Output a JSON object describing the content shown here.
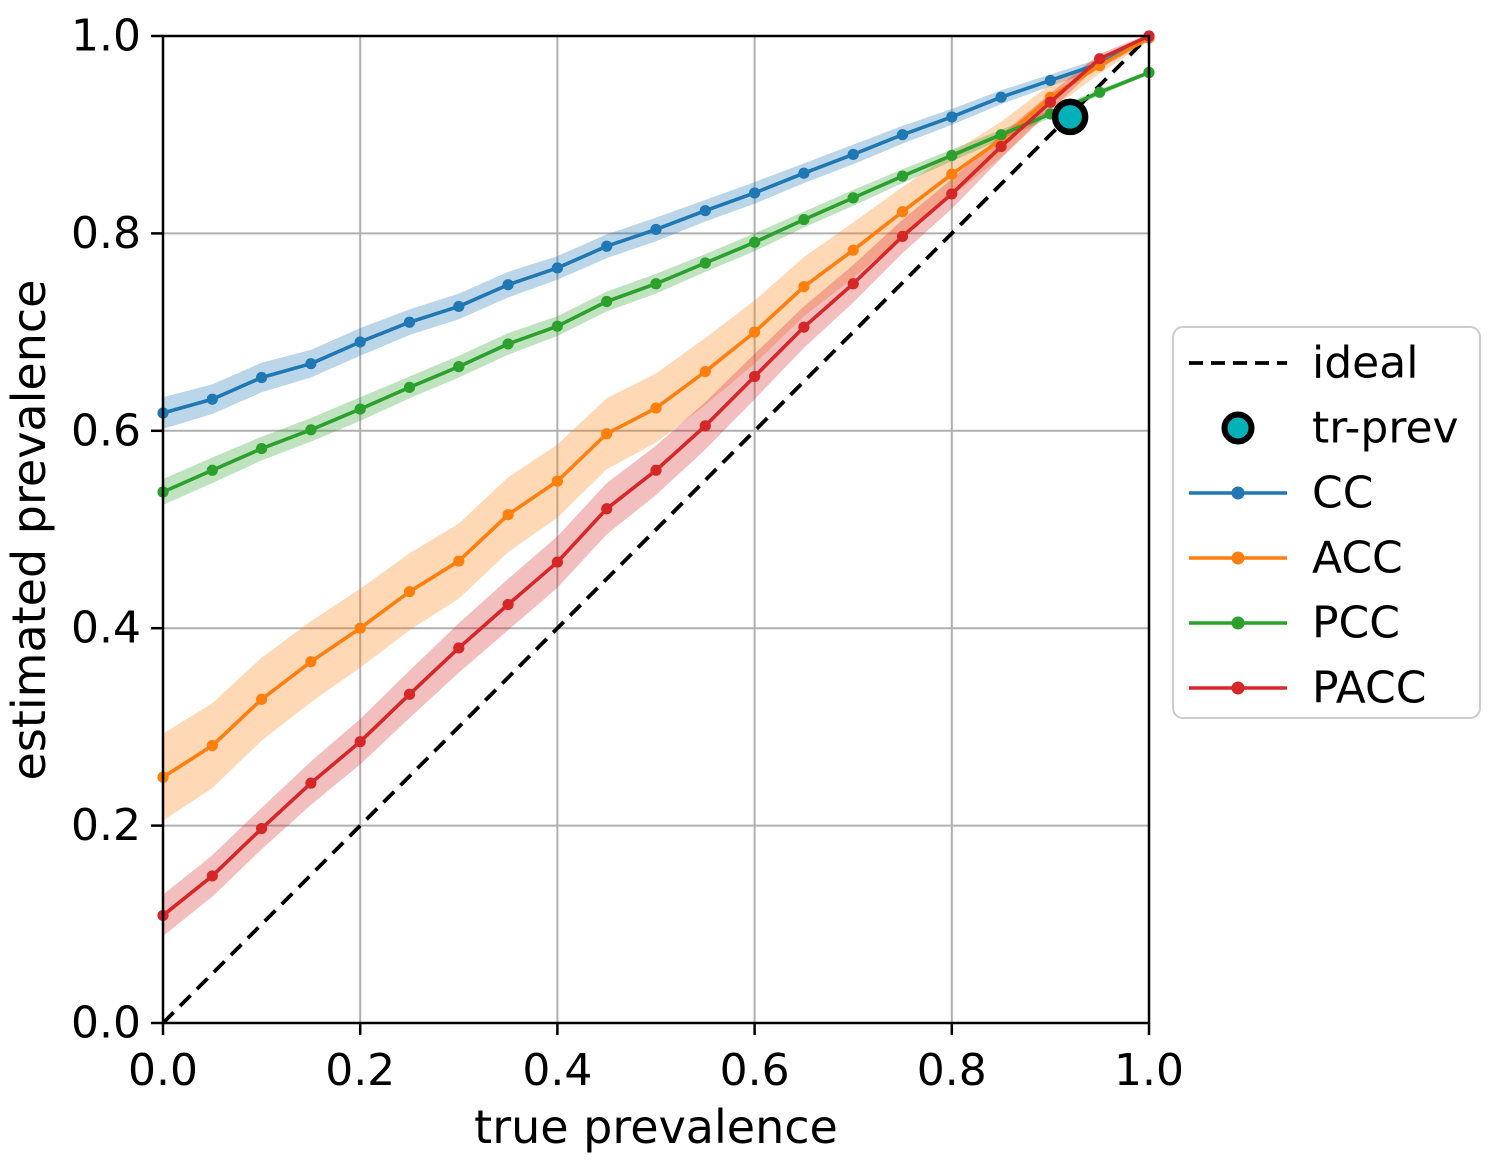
{
  "figure": {
    "background": "#ffffff",
    "grid_color": "#b0b0b0",
    "spine_color": "#000000"
  },
  "chart_data": {
    "type": "line",
    "title": "",
    "xlabel": "true prevalence",
    "ylabel": "estimated prevalence",
    "xlim": [
      0.0,
      1.0
    ],
    "ylim": [
      0.0,
      1.0
    ],
    "grid": true,
    "legend_position": "outside-right",
    "xticks": [
      "0.0",
      "0.2",
      "0.4",
      "0.6",
      "0.8",
      "1.0"
    ],
    "yticks": [
      "0.0",
      "0.2",
      "0.4",
      "0.6",
      "0.8",
      "1.0"
    ],
    "x": [
      0.0,
      0.05,
      0.1,
      0.15,
      0.2,
      0.25,
      0.3,
      0.35,
      0.4,
      0.45,
      0.5,
      0.55,
      0.6,
      0.65,
      0.7,
      0.75,
      0.8,
      0.85,
      0.9,
      0.95,
      1.0
    ],
    "series": [
      {
        "name": "CC",
        "color": "#1f77b4",
        "values": [
          0.618,
          0.632,
          0.654,
          0.668,
          0.69,
          0.71,
          0.726,
          0.748,
          0.765,
          0.787,
          0.804,
          0.823,
          0.841,
          0.861,
          0.88,
          0.9,
          0.918,
          0.938,
          0.955,
          0.972,
          0.998
        ],
        "band": [
          0.016,
          0.015,
          0.015,
          0.014,
          0.014,
          0.013,
          0.013,
          0.013,
          0.012,
          0.012,
          0.012,
          0.011,
          0.011,
          0.01,
          0.01,
          0.009,
          0.008,
          0.007,
          0.006,
          0.005,
          0.003
        ]
      },
      {
        "name": "ACC",
        "color": "#ff7f0e",
        "values": [
          0.249,
          0.281,
          0.328,
          0.366,
          0.4,
          0.437,
          0.468,
          0.515,
          0.549,
          0.597,
          0.623,
          0.66,
          0.7,
          0.746,
          0.783,
          0.822,
          0.86,
          0.895,
          0.938,
          0.97,
          0.998
        ],
        "band": [
          0.044,
          0.043,
          0.042,
          0.041,
          0.04,
          0.039,
          0.038,
          0.038,
          0.037,
          0.036,
          0.035,
          0.034,
          0.032,
          0.03,
          0.028,
          0.025,
          0.022,
          0.018,
          0.013,
          0.008,
          0.003
        ]
      },
      {
        "name": "PCC",
        "color": "#2ca02c",
        "values": [
          0.538,
          0.56,
          0.582,
          0.601,
          0.622,
          0.644,
          0.665,
          0.688,
          0.706,
          0.731,
          0.749,
          0.77,
          0.791,
          0.814,
          0.836,
          0.858,
          0.879,
          0.9,
          0.921,
          0.943,
          0.963
        ],
        "band": [
          0.013,
          0.013,
          0.012,
          0.012,
          0.012,
          0.011,
          0.011,
          0.011,
          0.01,
          0.01,
          0.01,
          0.009,
          0.009,
          0.008,
          0.008,
          0.007,
          0.006,
          0.005,
          0.004,
          0.003,
          0.002
        ]
      },
      {
        "name": "PACC",
        "color": "#d62728",
        "values": [
          0.109,
          0.149,
          0.197,
          0.243,
          0.285,
          0.333,
          0.38,
          0.424,
          0.467,
          0.521,
          0.56,
          0.605,
          0.655,
          0.705,
          0.749,
          0.797,
          0.84,
          0.888,
          0.933,
          0.977,
          1.0
        ],
        "band": [
          0.021,
          0.021,
          0.021,
          0.022,
          0.023,
          0.024,
          0.025,
          0.026,
          0.026,
          0.026,
          0.025,
          0.024,
          0.023,
          0.021,
          0.019,
          0.017,
          0.015,
          0.012,
          0.009,
          0.005,
          0.002
        ]
      }
    ],
    "ideal": {
      "label": "ideal",
      "style": "dashed",
      "color": "#000000",
      "from": [
        0.0,
        0.0
      ],
      "to": [
        1.0,
        1.0
      ]
    },
    "tr_prev": {
      "label": "tr-prev",
      "x": 0.92,
      "y": 0.918,
      "fill": "#00b2b8",
      "edge": "#000000"
    },
    "band_opacity": 0.3
  },
  "legend": {
    "border_color": "#cccccc",
    "background": "#ffffff",
    "items": [
      {
        "label": "ideal",
        "kind": "dashed",
        "color": "#000000"
      },
      {
        "label": "tr-prev",
        "kind": "marker",
        "color": "#00b2b8"
      },
      {
        "label": "CC",
        "kind": "line",
        "color": "#1f77b4"
      },
      {
        "label": "ACC",
        "kind": "line",
        "color": "#ff7f0e"
      },
      {
        "label": "PCC",
        "kind": "line",
        "color": "#2ca02c"
      },
      {
        "label": "PACC",
        "kind": "line",
        "color": "#d62728"
      }
    ]
  }
}
